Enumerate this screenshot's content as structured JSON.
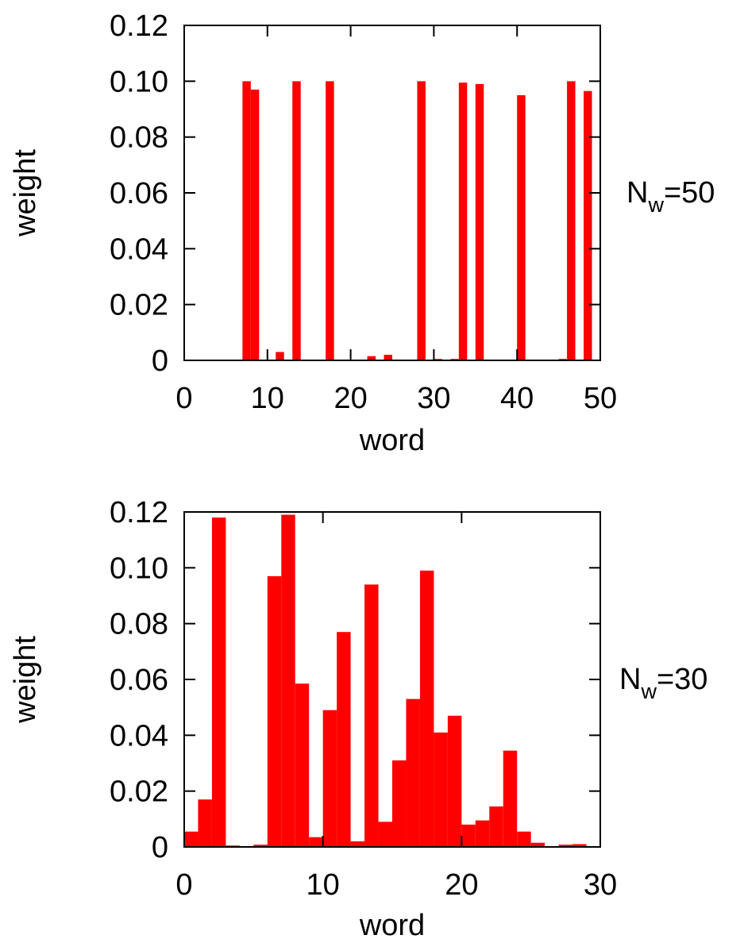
{
  "chart_data": [
    {
      "type": "bar",
      "xlabel": "word",
      "ylabel": "weight",
      "side_label": {
        "main": "N",
        "sub": "w",
        "rest": "=50"
      },
      "xlim": [
        0,
        50
      ],
      "ylim": [
        0,
        0.12
      ],
      "xticks": [
        0,
        10,
        20,
        30,
        40,
        50
      ],
      "xtick_labels": [
        "0",
        "10",
        "20",
        "30",
        "40",
        "50"
      ],
      "yticks": [
        0,
        0.02,
        0.04,
        0.06,
        0.08,
        0.1,
        0.12
      ],
      "ytick_labels": [
        "0",
        "0.02",
        "0.04",
        "0.06",
        "0.08",
        "0.10",
        "0.12"
      ],
      "bar_color": "#ff0000",
      "x": [
        0,
        1,
        2,
        3,
        4,
        5,
        6,
        7,
        8,
        9,
        10,
        11,
        12,
        13,
        14,
        15,
        16,
        17,
        18,
        19,
        20,
        21,
        22,
        23,
        24,
        25,
        26,
        27,
        28,
        29,
        30,
        31,
        32,
        33,
        34,
        35,
        36,
        37,
        38,
        39,
        40,
        41,
        42,
        43,
        44,
        45,
        46,
        47,
        48,
        49
      ],
      "values": [
        0,
        0,
        0,
        0,
        0,
        0,
        0,
        0.1,
        0.097,
        0,
        0,
        0.003,
        0,
        0.1,
        0,
        0,
        0,
        0.1,
        0,
        0,
        0,
        0,
        0.0015,
        0,
        0.002,
        0,
        0,
        0,
        0.1,
        0,
        0.0005,
        0,
        0.0005,
        0.0995,
        0,
        0.099,
        0,
        0,
        0,
        0,
        0.095,
        0,
        0,
        0,
        0,
        0.0005,
        0.1,
        0,
        0.0965,
        0
      ]
    },
    {
      "type": "bar",
      "xlabel": "word",
      "ylabel": "weight",
      "side_label": {
        "main": "N",
        "sub": "w",
        "rest": "=30"
      },
      "xlim": [
        0,
        30
      ],
      "ylim": [
        0,
        0.12
      ],
      "xticks": [
        0,
        10,
        20,
        30
      ],
      "xtick_labels": [
        "0",
        "10",
        "20",
        "30"
      ],
      "yticks": [
        0,
        0.02,
        0.04,
        0.06,
        0.08,
        0.1,
        0.12
      ],
      "ytick_labels": [
        "0",
        "0.02",
        "0.04",
        "0.06",
        "0.08",
        "0.10",
        "0.12"
      ],
      "bar_color": "#ff0000",
      "x": [
        0,
        1,
        2,
        3,
        4,
        5,
        6,
        7,
        8,
        9,
        10,
        11,
        12,
        13,
        14,
        15,
        16,
        17,
        18,
        19,
        20,
        21,
        22,
        23,
        24,
        25,
        26,
        27,
        28,
        29
      ],
      "values": [
        0.0055,
        0.017,
        0.118,
        0.0005,
        0,
        0.0008,
        0.097,
        0.119,
        0.0585,
        0.0035,
        0.049,
        0.077,
        0.002,
        0.094,
        0.009,
        0.031,
        0.053,
        0.099,
        0.041,
        0.047,
        0.008,
        0.0095,
        0.0145,
        0.0345,
        0.0055,
        0.0015,
        0,
        0.0008,
        0.001,
        0
      ]
    }
  ]
}
